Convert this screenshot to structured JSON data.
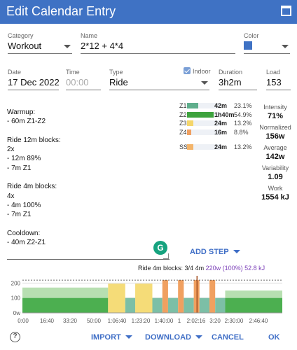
{
  "dialog": {
    "title": "Edit Calendar Entry"
  },
  "fields": {
    "category": {
      "label": "Category",
      "value": "Workout"
    },
    "name": {
      "label": "Name",
      "value": "2*12 + 4*4"
    },
    "color": {
      "label": "Color",
      "value": "#3f72c4"
    },
    "date": {
      "label": "Date",
      "value": "17 Dec 2022"
    },
    "time": {
      "label": "Time",
      "placeholder": "00:00"
    },
    "type": {
      "label": "Type",
      "value": "Ride"
    },
    "indoor": {
      "label": "Indoor",
      "checked": true
    },
    "duration": {
      "label": "Duration",
      "value": "3h2m"
    },
    "load": {
      "label": "Load",
      "value": "153"
    }
  },
  "description": [
    "Warmup:",
    "- 60m Z1-Z2",
    "",
    "Ride 12m blocks:",
    "2x",
    "- 12m 89%",
    "- 7m Z1",
    "",
    "Ride 4m blocks:",
    "4x",
    "- 4m 100%",
    "- 7m Z1",
    "",
    "Cooldown:",
    "- 40m Z2-Z1"
  ],
  "zones": [
    {
      "name": "Z1",
      "time": "42m",
      "pct": "23.1%",
      "color": "#5fae8c",
      "fraction": 0.231
    },
    {
      "name": "Z2",
      "time": "1h40m",
      "pct": "54.9%",
      "color": "#3ea33e",
      "fraction": 0.549
    },
    {
      "name": "Z3",
      "time": "24m",
      "pct": "13.2%",
      "color": "#f5d66b",
      "fraction": 0.132
    },
    {
      "name": "Z4",
      "time": "16m",
      "pct": "8.8%",
      "color": "#f0a060",
      "fraction": 0.088
    }
  ],
  "sweet_spot": {
    "name": "SS",
    "time": "24m",
    "pct": "13.2%",
    "color": "#f3b46a",
    "fraction": 0.132
  },
  "metrics": {
    "intensity": {
      "label": "Intensity",
      "value": "71%"
    },
    "normalized": {
      "label": "Normalized",
      "value": "156w"
    },
    "average": {
      "label": "Average",
      "value": "142w"
    },
    "variability": {
      "label": "Variability",
      "value": "1.09"
    },
    "work": {
      "label": "Work",
      "value": "1554 kJ"
    }
  },
  "add_step_label": "ADD STEP",
  "chart_caption": {
    "step": "Ride 4m blocks: 3/4",
    "duration": "4m",
    "power": "220w (100%)",
    "energy": "52.8 kJ"
  },
  "chart_data": {
    "type": "area",
    "y_ticks": [
      "200",
      "100",
      "0w"
    ],
    "ylim": [
      0,
      230
    ],
    "x_ticks": [
      "0:00",
      "16:40",
      "33:20",
      "50:00",
      "1:06:40",
      "1:23:20",
      "1:40:00",
      "1",
      "2:02:16",
      "3:20",
      "2:30:00",
      "2:46:40"
    ],
    "threshold_watts": 220,
    "colors": {
      "z1": "#7cbfa6",
      "z2": "#4caf50",
      "z3": "#f5dc78",
      "z4": "#f0a060",
      "bg": "#b7dfb1"
    },
    "segments": [
      {
        "start_min": 0,
        "end_min": 60,
        "low_w": 100,
        "high_w": 170,
        "zone": "ramp"
      },
      {
        "start_min": 60,
        "end_min": 72,
        "watts": 196,
        "zone": "z3"
      },
      {
        "start_min": 72,
        "end_min": 79,
        "watts": 100,
        "zone": "z1"
      },
      {
        "start_min": 79,
        "end_min": 91,
        "watts": 196,
        "zone": "z3"
      },
      {
        "start_min": 91,
        "end_min": 98,
        "watts": 100,
        "zone": "z1"
      },
      {
        "start_min": 98,
        "end_min": 102,
        "watts": 220,
        "zone": "z4"
      },
      {
        "start_min": 102,
        "end_min": 109,
        "watts": 100,
        "zone": "z1"
      },
      {
        "start_min": 109,
        "end_min": 113,
        "watts": 220,
        "zone": "z4"
      },
      {
        "start_min": 113,
        "end_min": 120,
        "watts": 100,
        "zone": "z1"
      },
      {
        "start_min": 120,
        "end_min": 124,
        "watts": 220,
        "zone": "z4"
      },
      {
        "start_min": 124,
        "end_min": 131,
        "watts": 100,
        "zone": "z1"
      },
      {
        "start_min": 131,
        "end_min": 135,
        "watts": 220,
        "zone": "z4"
      },
      {
        "start_min": 135,
        "end_min": 142,
        "watts": 100,
        "zone": "z1"
      },
      {
        "start_min": 142,
        "end_min": 182,
        "low_w": 100,
        "high_w": 150,
        "zone": "cooldown"
      }
    ],
    "cursor_min": 122.3
  },
  "footer": {
    "help": "?",
    "import": "IMPORT",
    "download": "DOWNLOAD",
    "cancel": "CANCEL",
    "ok": "OK"
  }
}
